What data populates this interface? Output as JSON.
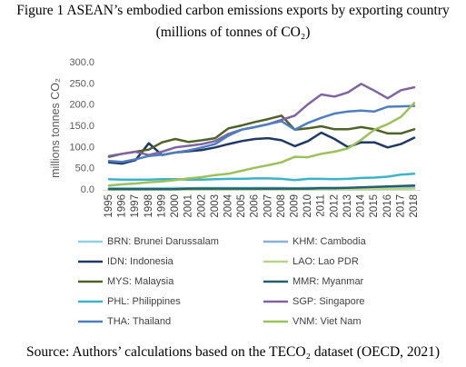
{
  "chart_data": {
    "type": "line",
    "title": "Figure 1 ASEAN’s embodied carbon emissions exports by exporting country",
    "subtitle": "(millions of tonnes of CO₂)",
    "xlabel": "",
    "ylabel": "millions tonnes CO₂",
    "x": [
      1995,
      1996,
      1997,
      1998,
      1999,
      2000,
      2001,
      2002,
      2003,
      2004,
      2005,
      2006,
      2007,
      2008,
      2009,
      2010,
      2011,
      2012,
      2013,
      2014,
      2015,
      2016,
      2017,
      2018
    ],
    "y_tick_labels": [
      "0.0",
      "50.0",
      "100.0",
      "150.0",
      "200.0",
      "250.0",
      "300.0"
    ],
    "ylim": [
      0,
      300
    ],
    "grid": false,
    "legend_position": "bottom",
    "series": [
      {
        "name": "BRN: Brunei Darussalam",
        "color": "#8fd0e3",
        "values": [
          4,
          4,
          4,
          4,
          4,
          5,
          4,
          5,
          5,
          5,
          5,
          5,
          5,
          5,
          4,
          5,
          5,
          5,
          5,
          5,
          4,
          4,
          4,
          4
        ]
      },
      {
        "name": "KHM: Cambodia",
        "color": "#88b0d8",
        "values": [
          1,
          1,
          1,
          1,
          1,
          1,
          2,
          2,
          2,
          2,
          2,
          3,
          3,
          3,
          3,
          3,
          4,
          4,
          5,
          5,
          6,
          6,
          7,
          8
        ]
      },
      {
        "name": "IDN: Indonesia",
        "color": "#203864",
        "values": [
          65,
          62,
          70,
          110,
          82,
          88,
          91,
          94,
          100,
          108,
          115,
          120,
          122,
          117,
          103,
          115,
          135,
          120,
          101,
          112,
          112,
          100,
          108,
          123
        ]
      },
      {
        "name": "LAO: Lao PDR",
        "color": "#b5d68a",
        "values": [
          0.4,
          0.4,
          0.4,
          0.5,
          0.5,
          0.5,
          0.5,
          0.6,
          0.6,
          0.7,
          0.8,
          0.9,
          1.0,
          1.0,
          1.0,
          1.2,
          1.4,
          1.6,
          1.8,
          2.0,
          2.2,
          2.4,
          2.6,
          3.0
        ]
      },
      {
        "name": "MYS: Malaysia",
        "color": "#4f6228",
        "values": [
          78,
          85,
          90,
          95,
          112,
          120,
          113,
          117,
          122,
          145,
          152,
          160,
          167,
          175,
          142,
          145,
          150,
          143,
          143,
          148,
          143,
          133,
          133,
          143
        ]
      },
      {
        "name": "MMR: Myanmar",
        "color": "#245f6e",
        "values": [
          2,
          2,
          2,
          2,
          2,
          2,
          3,
          3,
          3,
          3,
          3,
          3,
          3,
          3,
          3,
          3,
          4,
          4,
          5,
          6,
          7,
          8,
          9,
          10
        ]
      },
      {
        "name": "PHL: Philippines",
        "color": "#3bb4c8",
        "values": [
          25,
          24,
          24,
          24,
          25,
          25,
          24,
          24,
          25,
          26,
          26,
          27,
          27,
          26,
          23,
          26,
          26,
          25,
          26,
          28,
          29,
          31,
          36,
          38
        ]
      },
      {
        "name": "SGP: Singapore",
        "color": "#8064a2",
        "values": [
          80,
          85,
          90,
          82,
          90,
          100,
          104,
          108,
          115,
          132,
          142,
          148,
          155,
          165,
          175,
          202,
          225,
          220,
          230,
          250,
          234,
          216,
          235,
          242
        ]
      },
      {
        "name": "THA: Thailand",
        "color": "#4e7ec0",
        "values": [
          68,
          66,
          72,
          80,
          83,
          88,
          93,
          100,
          108,
          128,
          142,
          148,
          155,
          162,
          142,
          158,
          170,
          180,
          185,
          187,
          185,
          196,
          197,
          198
        ]
      },
      {
        "name": "VNM: Viet Nam",
        "color": "#9dc15a",
        "values": [
          10,
          13,
          15,
          18,
          20,
          23,
          27,
          30,
          35,
          38,
          45,
          52,
          58,
          65,
          78,
          77,
          85,
          90,
          98,
          118,
          142,
          155,
          172,
          205
        ]
      }
    ]
  },
  "caption": {
    "source": "Source: Authors’ calculations based on the TECO₂ dataset (OECD, 2021)"
  }
}
